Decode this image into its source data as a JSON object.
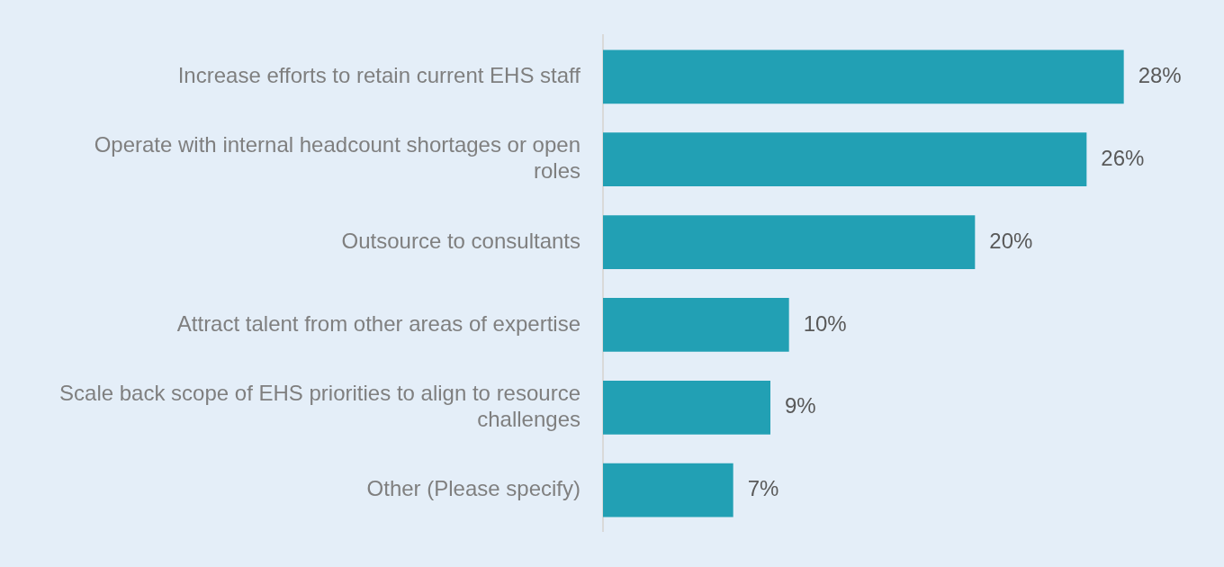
{
  "chart_data": {
    "type": "bar",
    "orientation": "horizontal",
    "categories": [
      "Increase efforts to retain current EHS staff",
      "Operate with internal headcount shortages or open roles",
      "Outsource to consultants",
      "Attract talent from other areas of expertise",
      "Scale back scope of EHS priorities to align to resource challenges",
      "Other (Please specify)"
    ],
    "values": [
      28,
      26,
      20,
      10,
      9,
      7
    ],
    "value_labels": [
      "28%",
      "26%",
      "20%",
      "10%",
      "9%",
      "7%"
    ],
    "color": "#22a0b4"
  }
}
